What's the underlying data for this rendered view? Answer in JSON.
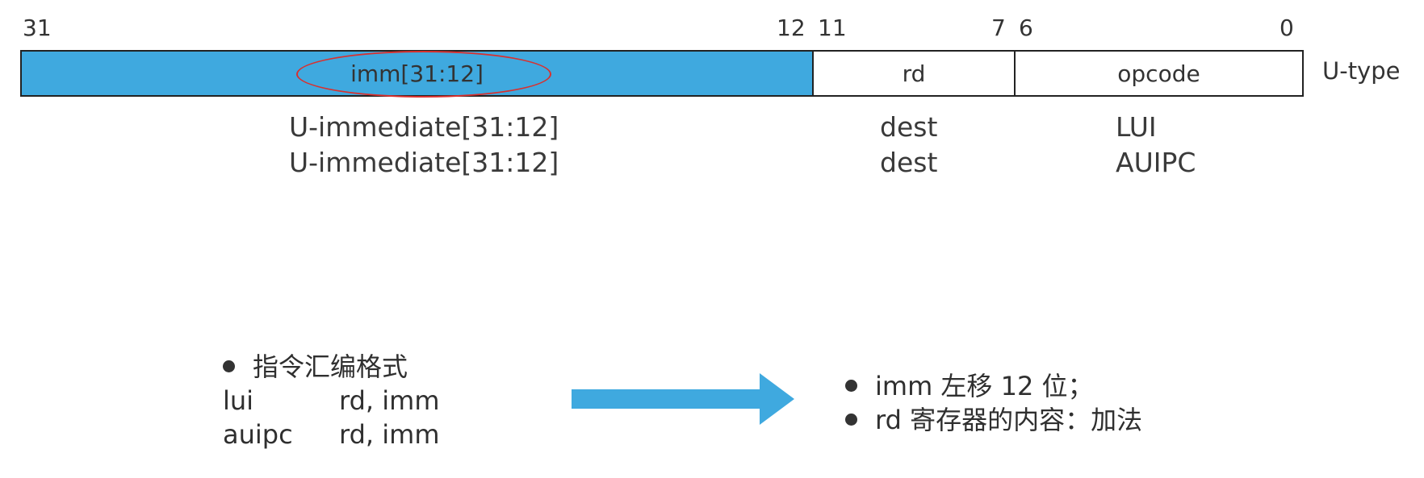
{
  "format": {
    "bit_labels": [
      "31",
      "12",
      "11",
      "7",
      "6",
      "0"
    ],
    "fields": {
      "imm": "imm[31:12]",
      "rd": "rd",
      "opcode": "opcode"
    },
    "type_label": "U-type",
    "imm_fill_color": "#3fa9df",
    "highlight_color": "#d9302e"
  },
  "instructions": [
    {
      "imm": "U-immediate[31:12]",
      "rd": "dest",
      "opcode": "LUI"
    },
    {
      "imm": "U-immediate[31:12]",
      "rd": "dest",
      "opcode": "AUIPC"
    }
  ],
  "assembly": {
    "heading": "指令汇编格式",
    "rows": [
      {
        "mnemonic": "lui",
        "operands": "rd, imm"
      },
      {
        "mnemonic": "auipc",
        "operands": "rd, imm"
      }
    ]
  },
  "arrow_color": "#3fa9df",
  "notes": [
    "imm 左移 12 位；",
    "rd 寄存器的内容：加法"
  ]
}
